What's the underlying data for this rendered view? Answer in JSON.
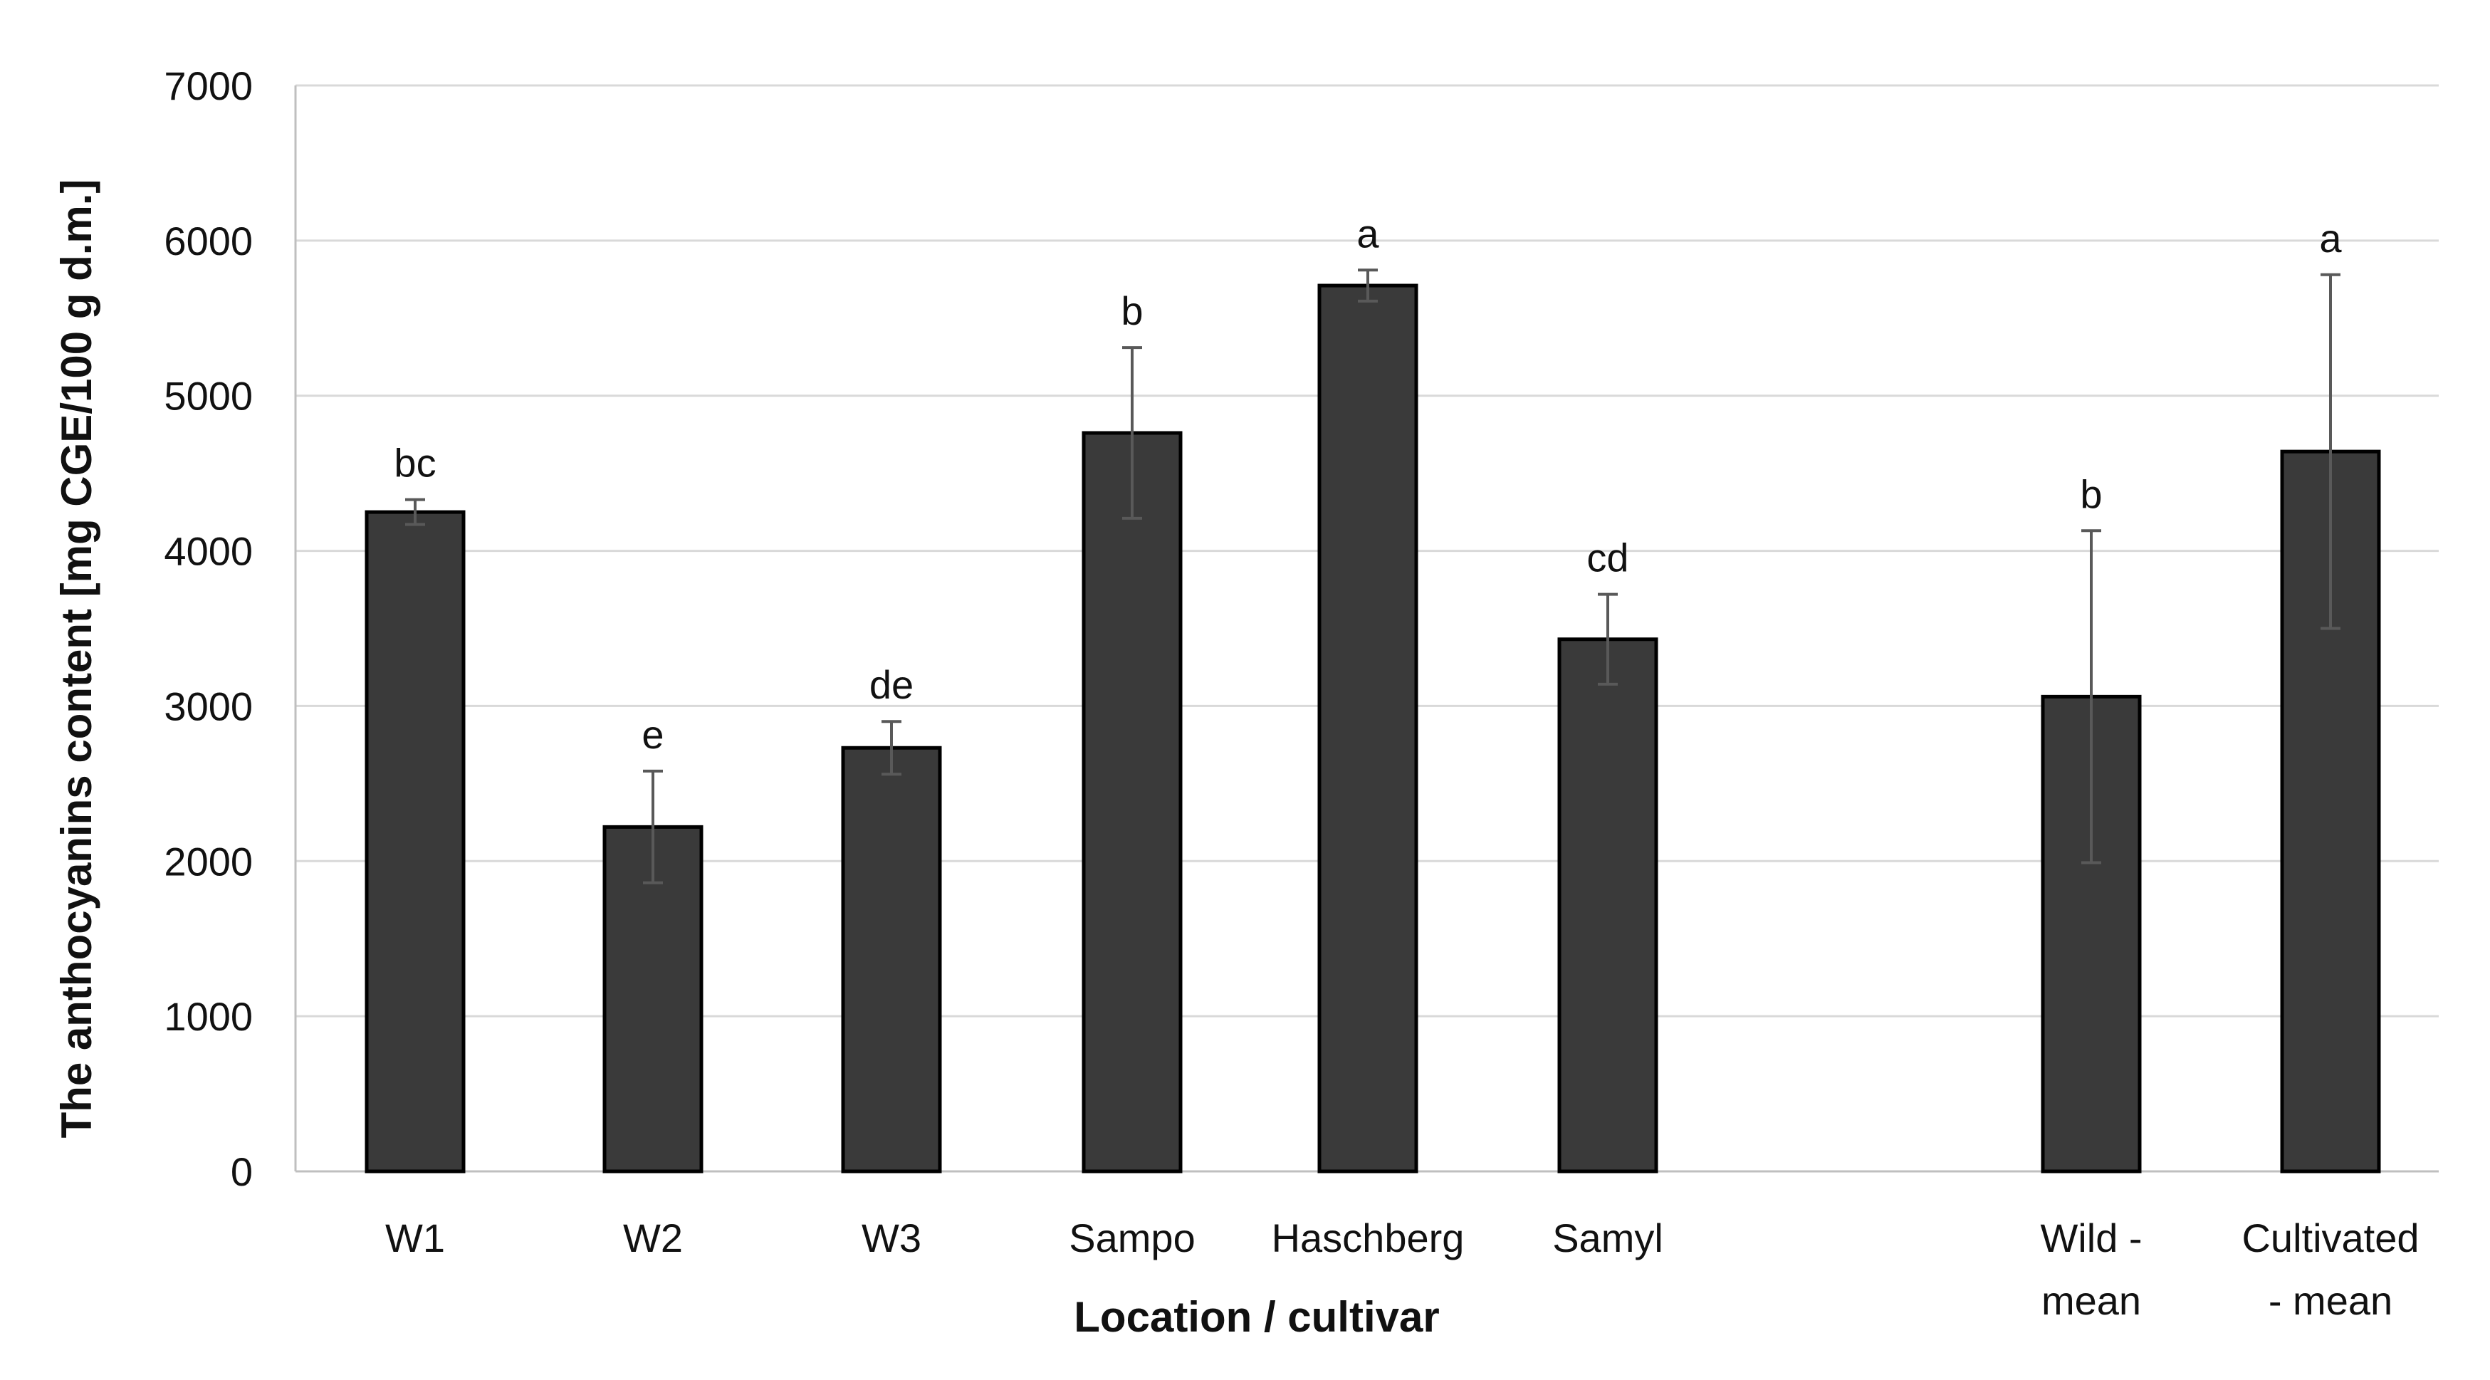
{
  "chart_data": {
    "type": "bar",
    "title": "",
    "xlabel": "Location / cultivar",
    "ylabel": "The anthocyanins content [mg CGE/100 g d.m.]",
    "ylim": [
      0,
      7000
    ],
    "yticks": [
      "0",
      "1000",
      "2000",
      "3000",
      "4000",
      "5000",
      "6000",
      "7000"
    ],
    "grid": true,
    "categories": [
      [
        "W1"
      ],
      [
        "W2"
      ],
      [
        "W3"
      ],
      [
        "Sampo"
      ],
      [
        "Haschberg"
      ],
      [
        "Samyl"
      ],
      [
        "Wild -",
        "mean"
      ],
      [
        "Cultivated",
        "- mean"
      ]
    ],
    "values": [
      4250,
      2220,
      2730,
      4760,
      5710,
      3430,
      3060,
      4640
    ],
    "errors": [
      80,
      360,
      170,
      550,
      100,
      290,
      1070,
      1140
    ],
    "significance": [
      "bc",
      "e",
      "de",
      "b",
      "a",
      "cd",
      "b",
      "a"
    ],
    "bar_color": "#3a3a3a",
    "error_color": "#595959",
    "grid_color": "#d9d9d9"
  }
}
